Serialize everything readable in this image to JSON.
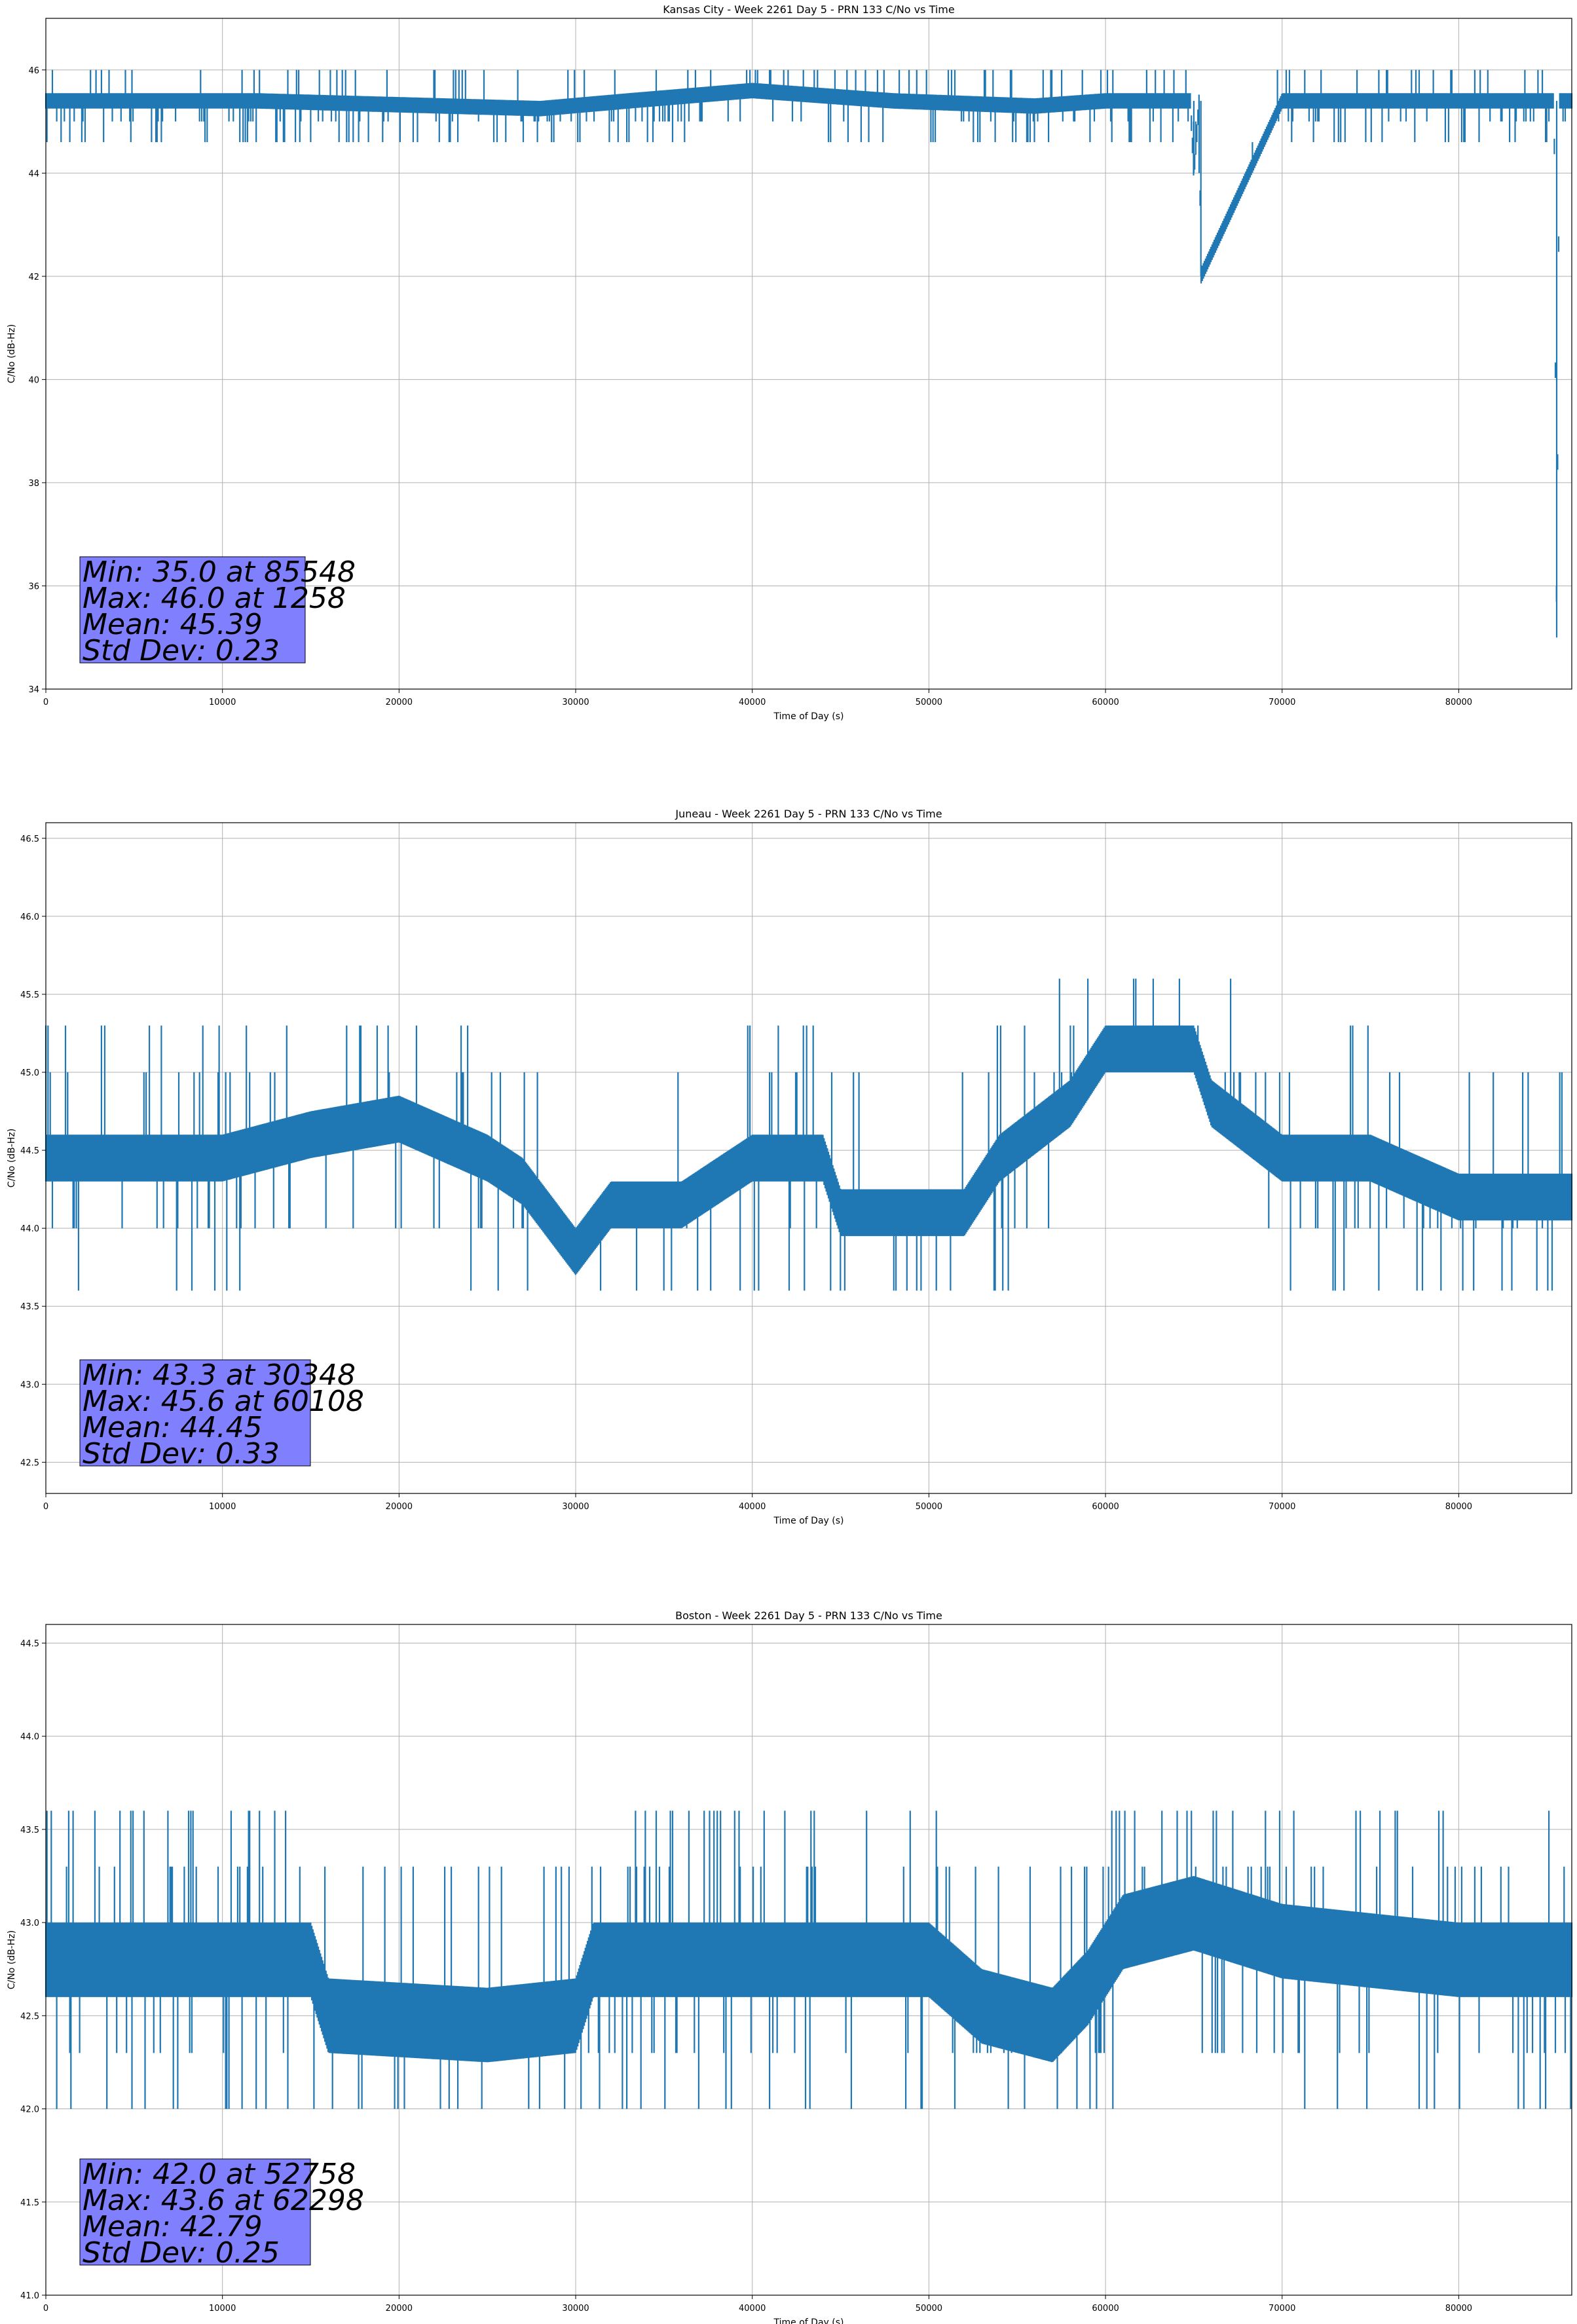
{
  "chart_data": [
    {
      "type": "line",
      "title": "Kansas City - Week 2261 Day 5 - PRN 133 C/No vs Time",
      "xlabel": "Time of Day (s)",
      "ylabel": "C/No (dB-Hz)",
      "xlim": [
        0,
        86400
      ],
      "ylim": [
        34,
        47
      ],
      "xticks": [
        0,
        10000,
        20000,
        30000,
        40000,
        50000,
        60000,
        70000,
        80000
      ],
      "yticks": [
        34,
        36,
        38,
        40,
        42,
        44,
        46
      ],
      "ytick_labels": [
        "34",
        "36",
        "38",
        "40",
        "42",
        "44",
        "46"
      ],
      "grid": true,
      "color": "#1f77b4",
      "series_profile": {
        "x": [
          0,
          12000,
          28000,
          33000,
          40000,
          48000,
          56000,
          60000,
          64800,
          65000,
          65300,
          65400,
          70000,
          78000,
          85400,
          85548,
          85700,
          86400
        ],
        "y": [
          45.4,
          45.4,
          45.25,
          45.4,
          45.6,
          45.4,
          45.3,
          45.4,
          45.4,
          44.0,
          45.4,
          42.0,
          45.4,
          45.4,
          45.4,
          35.0,
          45.4,
          45.4
        ],
        "band_low": 45.3,
        "band_high": 45.6,
        "spike_values": [
          46.0,
          45.0,
          44.6
        ]
      },
      "stats": [
        "Min: 35.0 at 85548",
        "Max: 46.0 at 1258",
        "Mean: 45.39",
        "Std Dev: 0.23"
      ]
    },
    {
      "type": "line",
      "title": "Juneau - Week 2261 Day 5 - PRN 133 C/No vs Time",
      "xlabel": "Time of Day (s)",
      "ylabel": "C/No (dB-Hz)",
      "xlim": [
        0,
        86400
      ],
      "ylim": [
        42.3,
        46.6
      ],
      "xticks": [
        0,
        10000,
        20000,
        30000,
        40000,
        50000,
        60000,
        70000,
        80000
      ],
      "yticks": [
        42.5,
        43.0,
        43.5,
        44.0,
        44.5,
        45.0,
        45.5,
        46.0,
        46.5
      ],
      "ytick_labels": [
        "42.5",
        "43.0",
        "43.5",
        "44.0",
        "44.5",
        "45.0",
        "45.5",
        "46.0",
        "46.5"
      ],
      "grid": true,
      "color": "#1f77b4",
      "series_profile": {
        "x": [
          0,
          10000,
          15000,
          20000,
          25000,
          27000,
          30000,
          32000,
          36000,
          40000,
          44000,
          45000,
          52000,
          54000,
          58000,
          60000,
          62000,
          65000,
          66000,
          70000,
          75000,
          80000,
          86400
        ],
        "y": [
          44.45,
          44.45,
          44.6,
          44.7,
          44.45,
          44.3,
          43.85,
          44.15,
          44.15,
          44.45,
          44.45,
          44.1,
          44.1,
          44.45,
          44.8,
          45.15,
          45.15,
          45.15,
          44.8,
          44.45,
          44.45,
          44.2,
          44.2
        ],
        "band_low": 44.3,
        "band_high": 44.6,
        "spike_values": [
          45.0,
          44.0,
          43.6,
          45.3,
          45.6
        ]
      },
      "stats": [
        "Min: 43.3 at 30348",
        "Max: 45.6 at 60108",
        "Mean: 44.45",
        "Std Dev: 0.33"
      ]
    },
    {
      "type": "line",
      "title": "Boston - Week 2261 Day 5 - PRN 133 C/No vs Time",
      "xlabel": "Time of Day (s)",
      "ylabel": "C/No (dB-Hz)",
      "xlim": [
        0,
        86400
      ],
      "ylim": [
        41.0,
        44.6
      ],
      "xticks": [
        0,
        10000,
        20000,
        30000,
        40000,
        50000,
        60000,
        70000,
        80000
      ],
      "yticks": [
        41.0,
        41.5,
        42.0,
        42.5,
        43.0,
        43.5,
        44.0,
        44.5
      ],
      "ytick_labels": [
        "41.0",
        "41.5",
        "42.0",
        "42.5",
        "43.0",
        "43.5",
        "44.0",
        "44.5"
      ],
      "grid": true,
      "color": "#1f77b4",
      "series_profile": {
        "x": [
          0,
          15000,
          16000,
          25000,
          30000,
          31000,
          40000,
          50000,
          53000,
          57000,
          59000,
          61000,
          65000,
          70000,
          80000,
          86400
        ],
        "y": [
          42.8,
          42.8,
          42.5,
          42.45,
          42.5,
          42.8,
          42.8,
          42.8,
          42.55,
          42.45,
          42.65,
          42.95,
          43.05,
          42.9,
          42.8,
          42.8
        ],
        "band_low": 42.6,
        "band_high": 43.0,
        "spike_values": [
          43.3,
          42.3,
          42.0,
          43.6
        ]
      },
      "stats": [
        "Min: 42.0 at 52758",
        "Max: 43.6 at 62298",
        "Mean: 42.79",
        "Std Dev: 0.25"
      ]
    }
  ]
}
